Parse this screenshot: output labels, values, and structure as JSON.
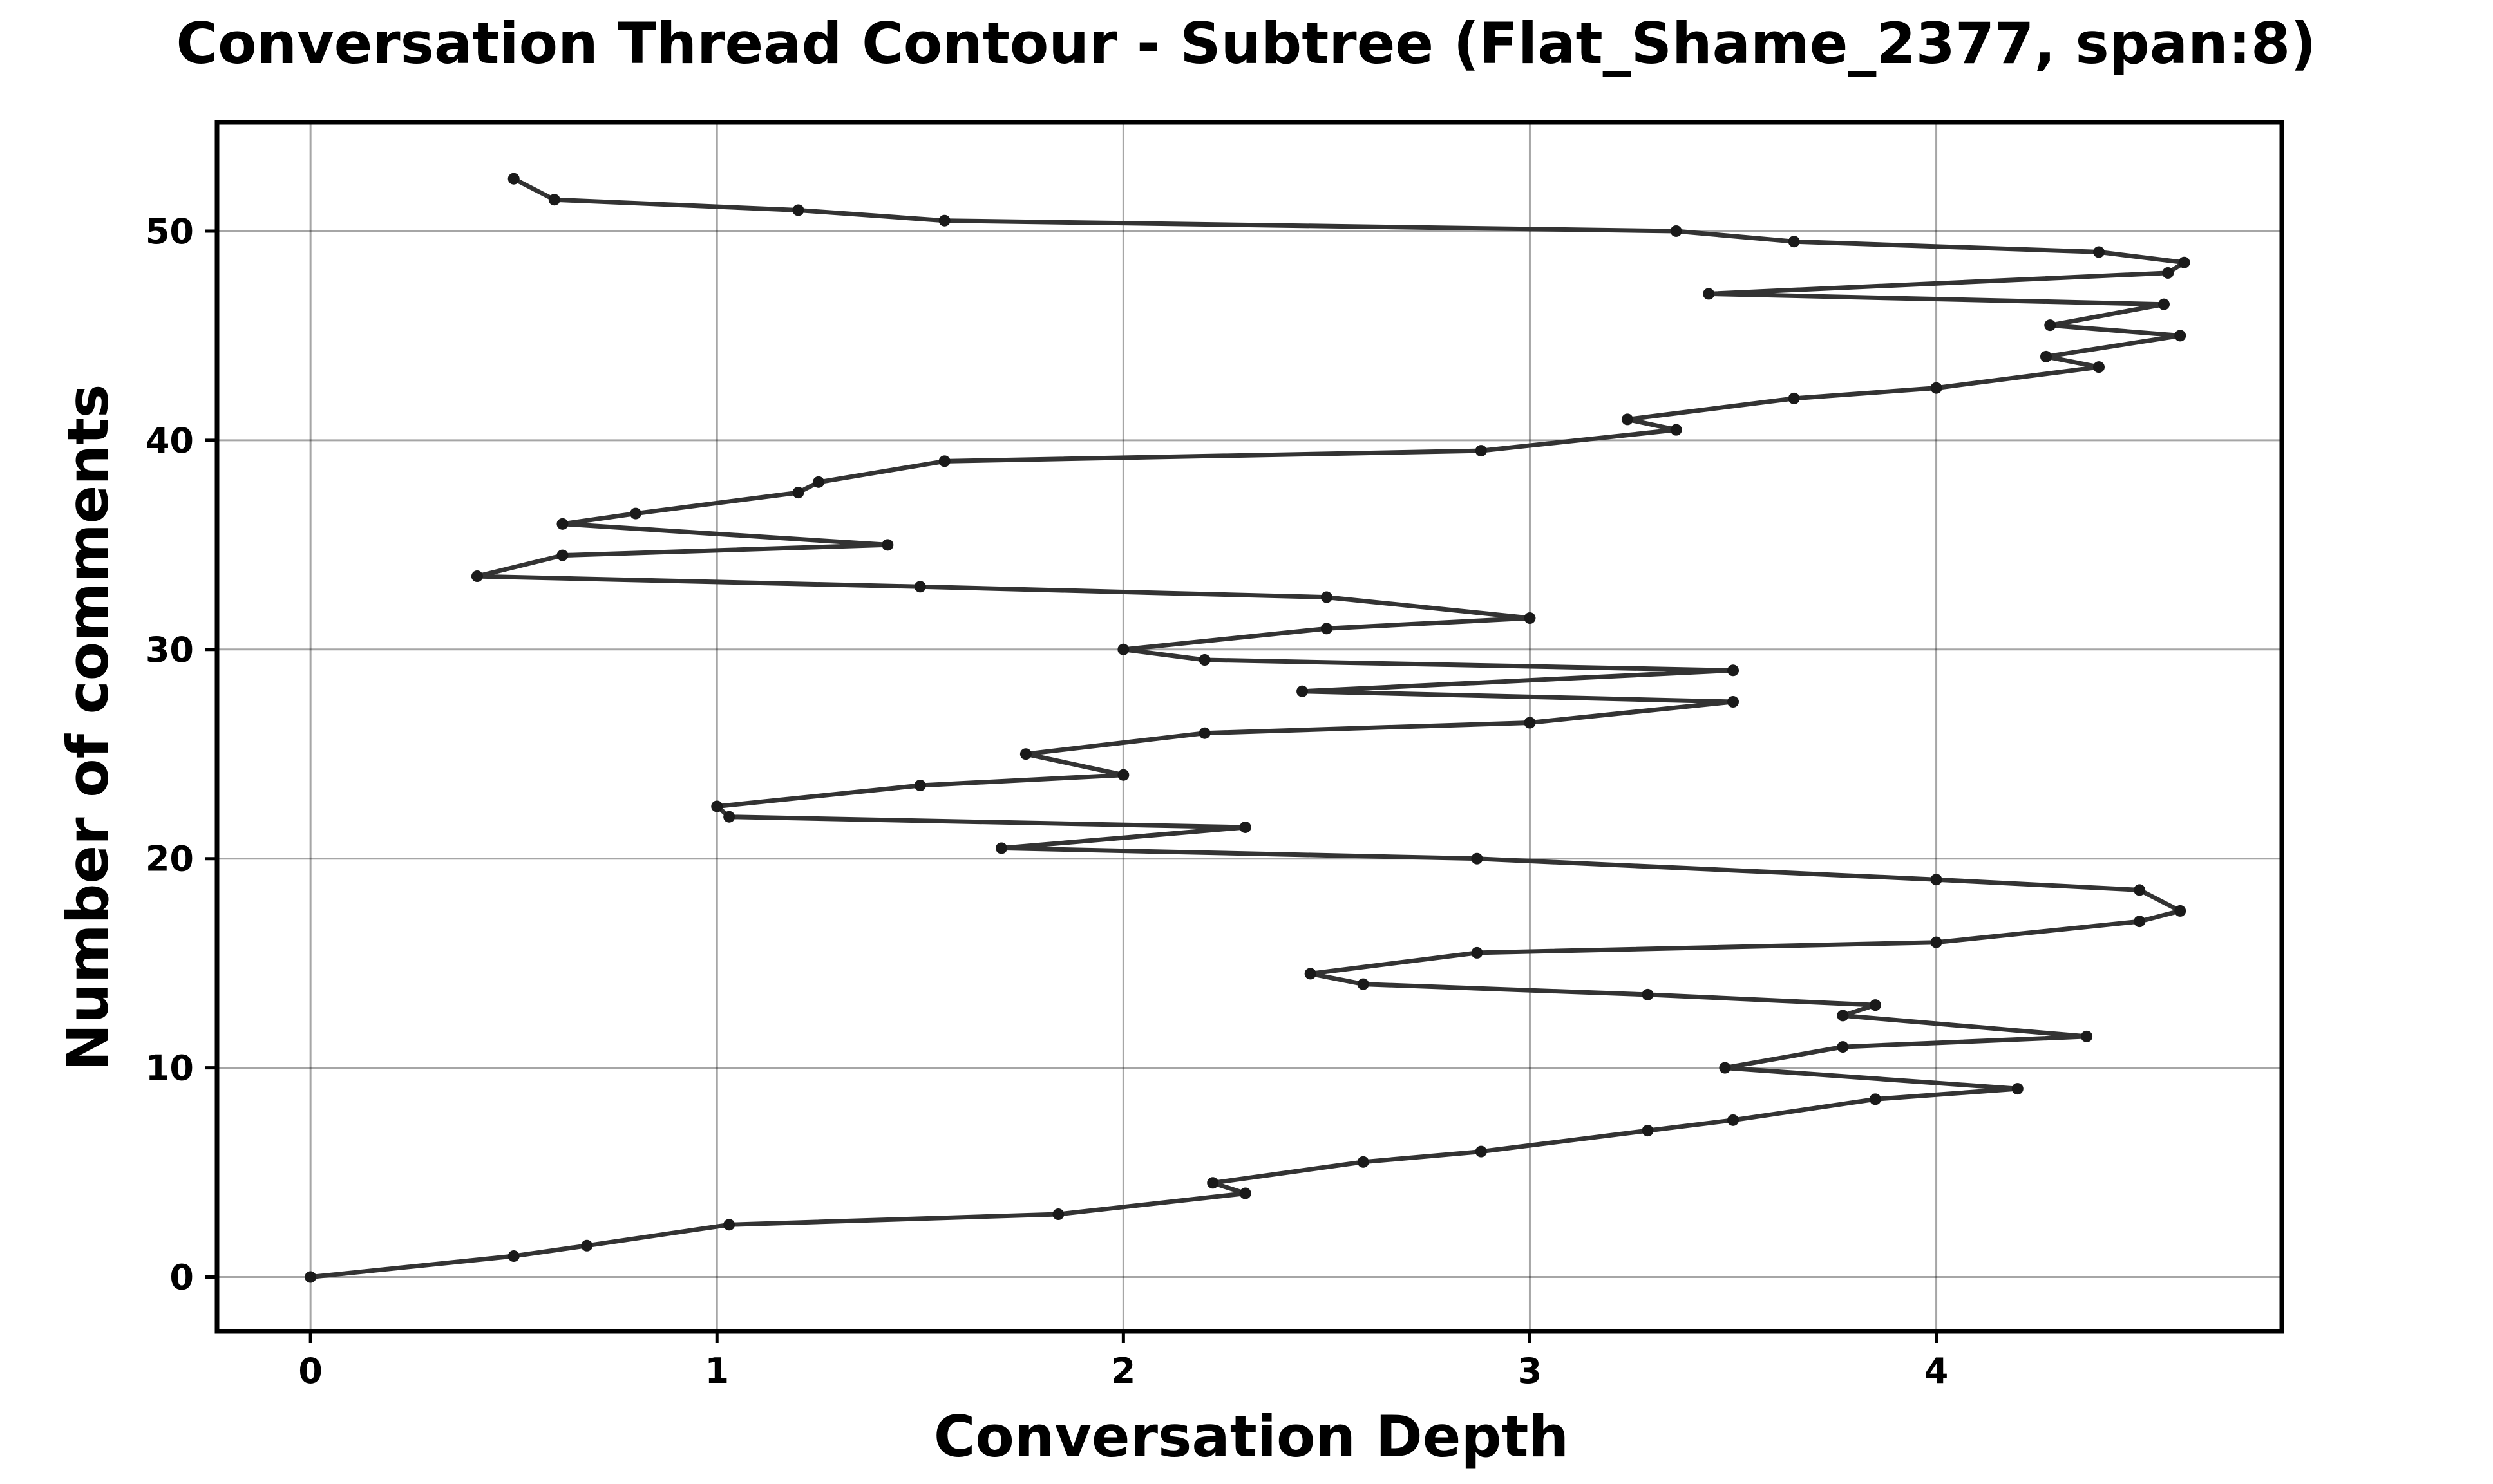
{
  "chart_data": {
    "type": "line",
    "title": "Conversation Thread Contour  - Subtree (Flat_Shame_2377, span:8)",
    "xlabel": "Conversation Depth",
    "ylabel": "Number of comments",
    "xlim": [
      -0.23,
      4.85
    ],
    "ylim": [
      -2.6,
      55.2
    ],
    "xticks": [
      0,
      1,
      2,
      3,
      4
    ],
    "yticks": [
      0,
      10,
      20,
      30,
      40,
      50
    ],
    "grid": true,
    "legend": "none",
    "color": "#333333",
    "series": [
      {
        "x": [
          0,
          0.5,
          0.68,
          1.03,
          1.84,
          2.3,
          2.22,
          2.59,
          2.88,
          3.29,
          3.5,
          3.85,
          4.2,
          3.48,
          3.77,
          4.37,
          3.77,
          3.85,
          3.29,
          2.59,
          2.46,
          2.87,
          4.0,
          4.5,
          4.6,
          4.5,
          4.0,
          2.87,
          1.7,
          2.3,
          1.03,
          1.0,
          1.5,
          2.0,
          1.76,
          2.2,
          3.0,
          3.5,
          2.44,
          3.5,
          2.2,
          2.0,
          2.5,
          3.0,
          2.5,
          1.5,
          0.41,
          0.62,
          1.42,
          0.62,
          0.8,
          1.2,
          1.25,
          1.56,
          2.88,
          3.36,
          3.24,
          3.65,
          4.0,
          4.4,
          4.27,
          4.6,
          4.28,
          4.56,
          3.44,
          4.57,
          4.61,
          4.4,
          3.65,
          3.36,
          1.56,
          1.2,
          0.6,
          0.5
        ],
        "y": [
          0,
          1,
          1.5,
          2.5,
          3,
          4,
          4.5,
          5.5,
          6,
          7,
          7.5,
          8.5,
          9,
          10,
          11,
          11.5,
          12.5,
          13,
          13.5,
          14,
          14.5,
          15.5,
          16,
          17,
          17.5,
          18.5,
          19,
          20,
          20.5,
          21.5,
          22,
          22.5,
          23.5,
          24,
          25,
          26,
          26.5,
          27.5,
          28,
          29,
          29.5,
          30,
          31,
          31.5,
          32.5,
          33,
          33.5,
          34.5,
          35,
          36,
          36.5,
          37.5,
          38,
          39,
          39.5,
          40.5,
          41,
          42,
          42.5,
          43.5,
          44,
          45,
          45.5,
          46.5,
          47,
          48,
          48.5,
          49,
          49.5,
          50,
          50.5,
          51,
          51.5,
          52.5
        ]
      }
    ]
  }
}
